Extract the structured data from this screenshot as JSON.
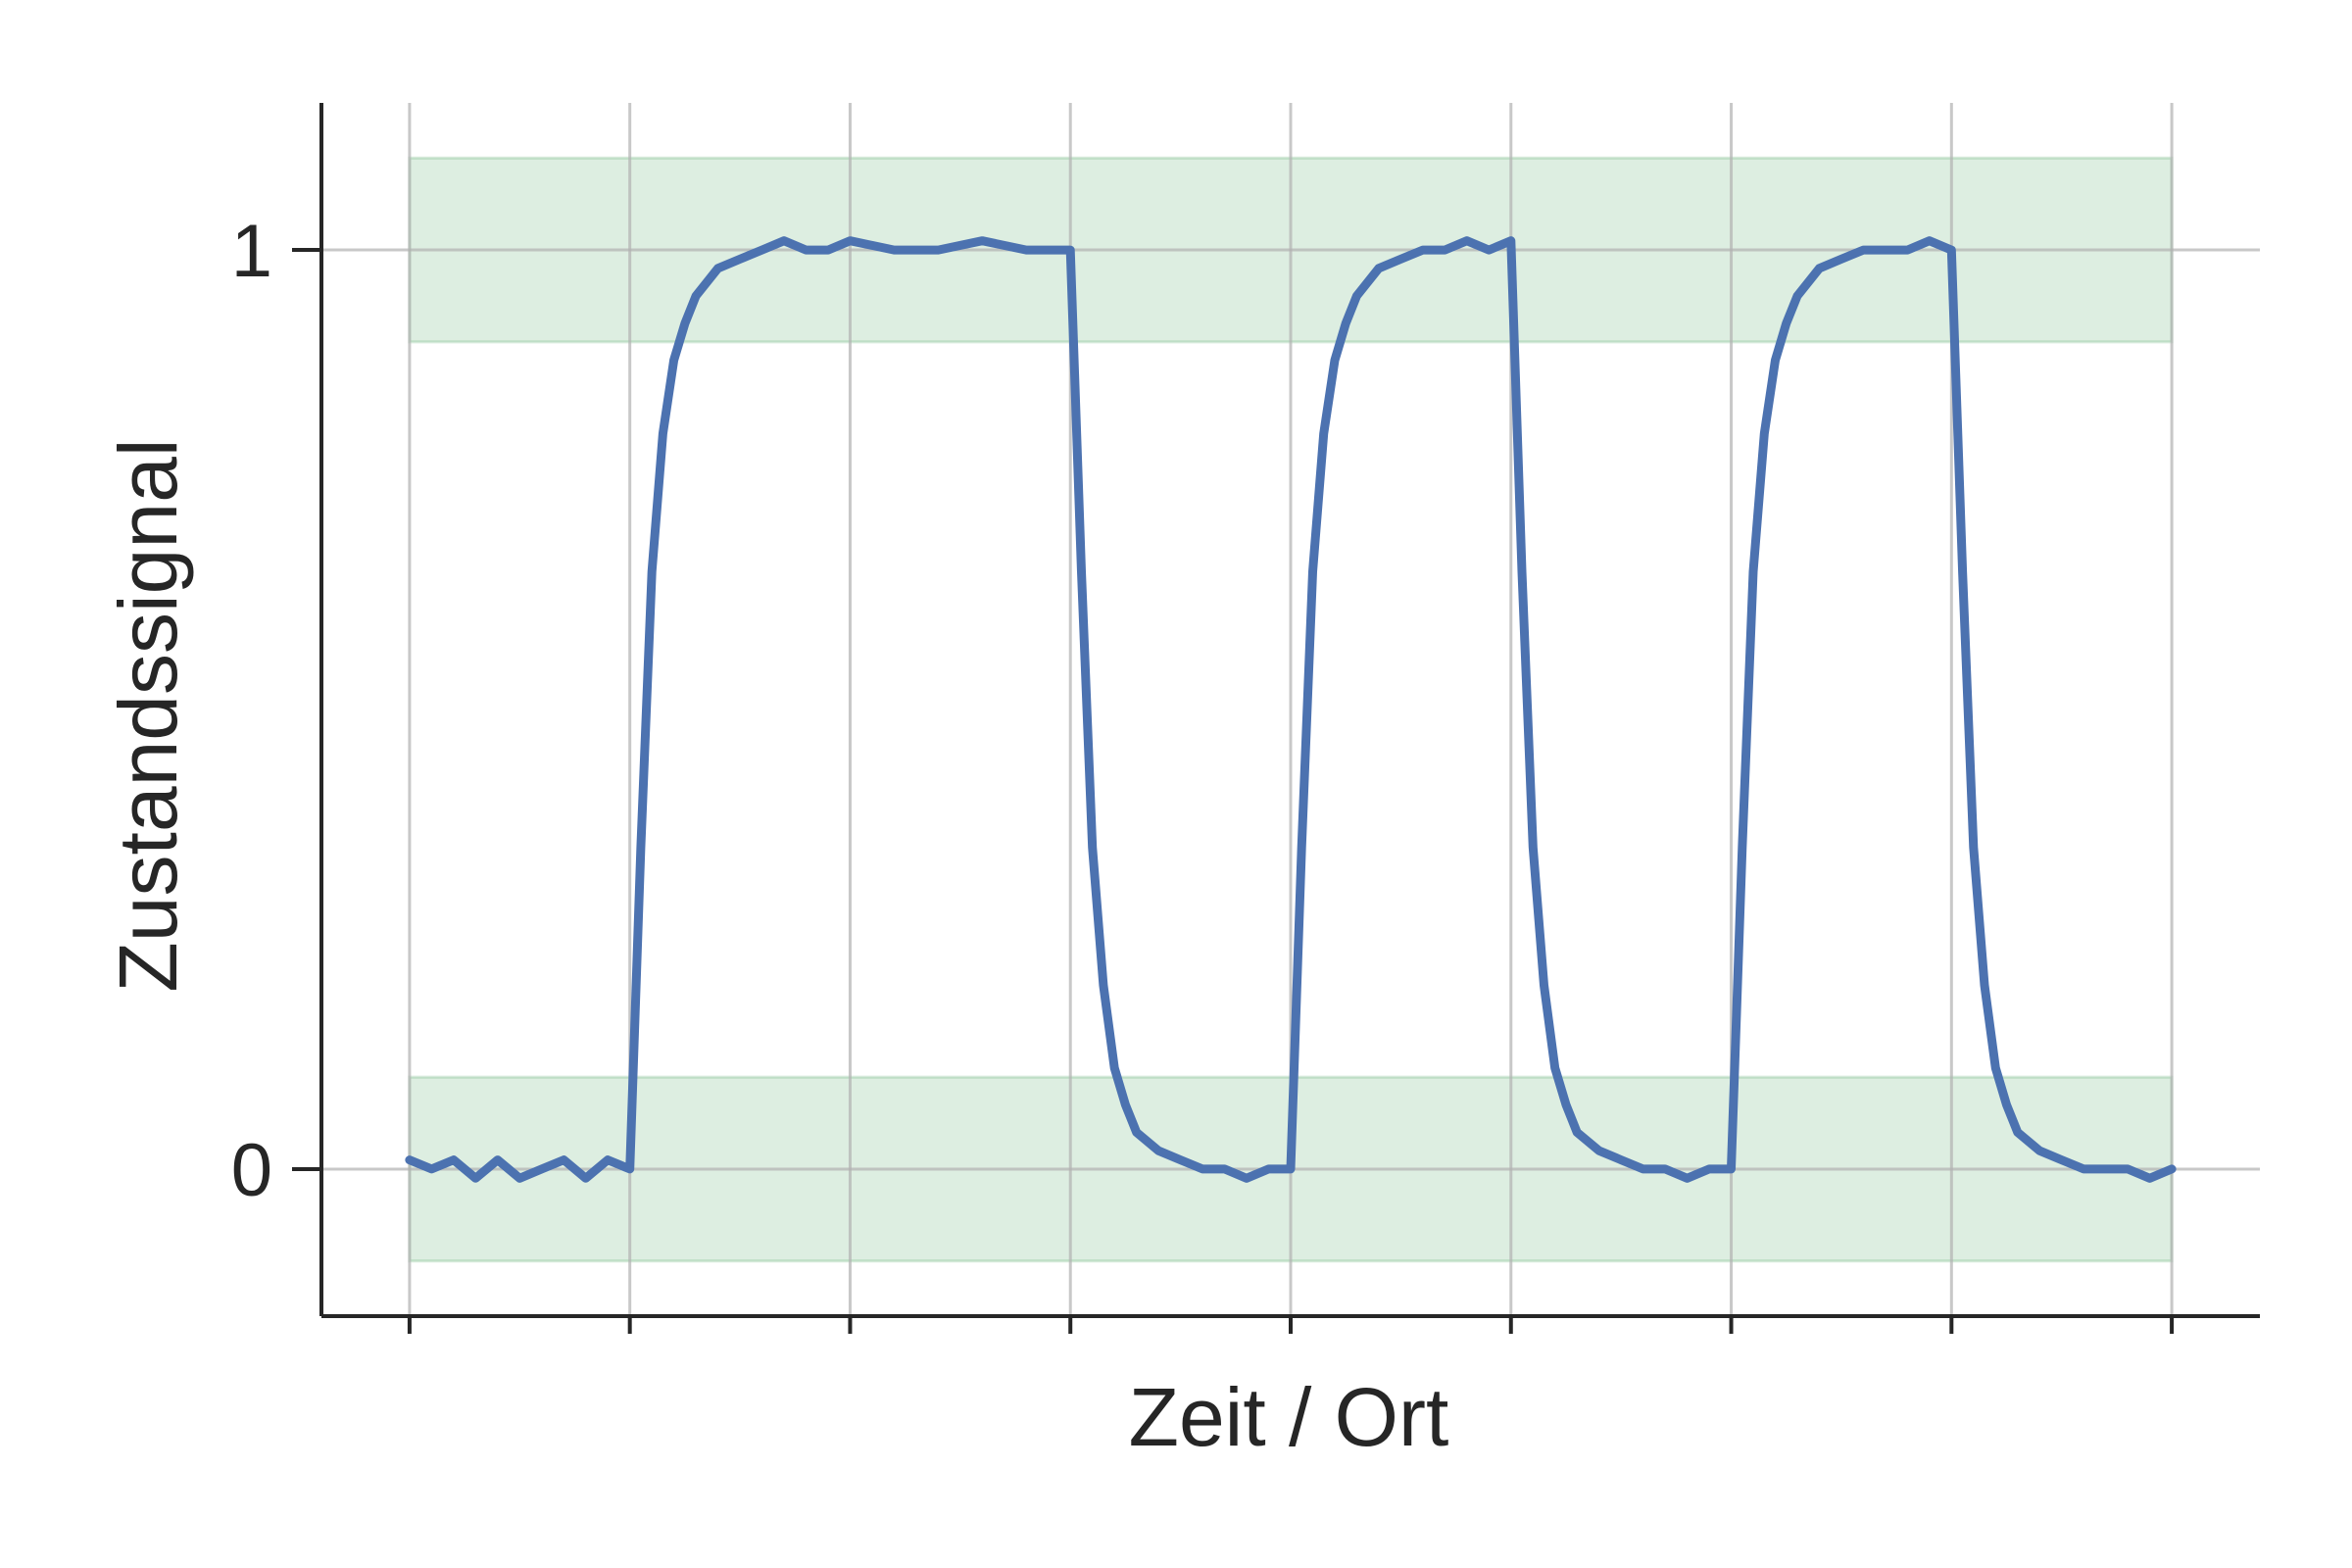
{
  "chart_data": {
    "type": "line",
    "title": "",
    "xlabel": "Zeit / Ort",
    "ylabel": "Zustandssignal",
    "xlim": [
      -0.4,
      8.4
    ],
    "ylim": [
      -0.16,
      1.16
    ],
    "x_ticks": [
      0,
      1,
      2,
      3,
      4,
      5,
      6,
      7,
      8
    ],
    "y_ticks": [
      {
        "value": 0,
        "label": "0"
      },
      {
        "value": 1,
        "label": "1"
      }
    ],
    "grid": true,
    "bands": [
      {
        "name": "",
        "y0": -0.1,
        "y1": 0.1,
        "x0": 0,
        "x1": 8,
        "color": "#55a868"
      },
      {
        "name": "",
        "y0": 0.9,
        "y1": 1.1,
        "x0": 0,
        "x1": 8,
        "color": "#55a868"
      }
    ],
    "series": [
      {
        "name": "",
        "color": "#4c72b0",
        "x": [
          0,
          0.1,
          0.2,
          0.3,
          0.4,
          0.5,
          0.6,
          0.7,
          0.8,
          0.9,
          1.0,
          1.05,
          1.1,
          1.15,
          1.2,
          1.25,
          1.3,
          1.4,
          1.5,
          1.6,
          1.7,
          1.8,
          1.9,
          2.0,
          2.2,
          2.4,
          2.6,
          2.8,
          3.0,
          3.05,
          3.1,
          3.15,
          3.2,
          3.25,
          3.3,
          3.4,
          3.5,
          3.6,
          3.7,
          3.8,
          3.9,
          4.0,
          4.05,
          4.1,
          4.15,
          4.2,
          4.25,
          4.3,
          4.4,
          4.5,
          4.6,
          4.7,
          4.8,
          4.9,
          5.0,
          5.05,
          5.1,
          5.15,
          5.2,
          5.25,
          5.3,
          5.4,
          5.5,
          5.6,
          5.7,
          5.8,
          5.9,
          6.0,
          6.05,
          6.1,
          6.15,
          6.2,
          6.25,
          6.3,
          6.4,
          6.5,
          6.6,
          6.7,
          6.8,
          6.9,
          7.0,
          7.05,
          7.1,
          7.15,
          7.2,
          7.25,
          7.3,
          7.4,
          7.5,
          7.6,
          7.7,
          7.8,
          7.9,
          8.0
        ],
        "y": [
          0.01,
          0.0,
          0.01,
          -0.01,
          0.01,
          -0.01,
          0.0,
          0.01,
          -0.01,
          0.01,
          0.0,
          0.35,
          0.65,
          0.8,
          0.88,
          0.92,
          0.95,
          0.98,
          0.99,
          1.0,
          1.01,
          1.0,
          1.0,
          1.01,
          1.0,
          1.0,
          1.01,
          1.0,
          1.0,
          0.65,
          0.35,
          0.2,
          0.11,
          0.07,
          0.04,
          0.02,
          0.01,
          0.0,
          0.0,
          -0.01,
          0.0,
          0.0,
          0.35,
          0.65,
          0.8,
          0.88,
          0.92,
          0.95,
          0.98,
          0.99,
          1.0,
          1.0,
          1.01,
          1.0,
          1.01,
          0.65,
          0.35,
          0.2,
          0.11,
          0.07,
          0.04,
          0.02,
          0.01,
          0.0,
          0.0,
          -0.01,
          0.0,
          0.0,
          0.35,
          0.65,
          0.8,
          0.88,
          0.92,
          0.95,
          0.98,
          0.99,
          1.0,
          1.0,
          1.0,
          1.01,
          1.0,
          0.65,
          0.35,
          0.2,
          0.11,
          0.07,
          0.04,
          0.02,
          0.01,
          0.0,
          0.0,
          0.0,
          -0.01,
          0.0
        ]
      }
    ]
  }
}
